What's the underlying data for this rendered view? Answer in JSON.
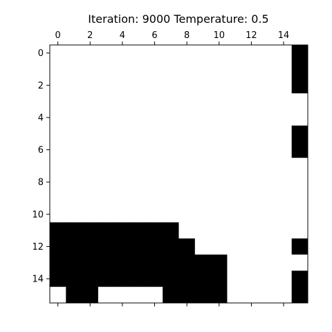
{
  "chart_data": {
    "type": "heatmap",
    "title": "Iteration: 9000 Temperature: 0.5",
    "xlabel": "",
    "ylabel": "",
    "x_ticks": [
      0,
      2,
      4,
      6,
      8,
      10,
      12,
      14
    ],
    "y_ticks": [
      0,
      2,
      4,
      6,
      8,
      10,
      12,
      14
    ],
    "xlim": [
      -0.5,
      15.5
    ],
    "ylim": [
      15.5,
      -0.5
    ],
    "x_axis_position": "top",
    "grid": false,
    "colormap": {
      "0": "#ffffff",
      "1": "#000000"
    },
    "values": [
      [
        0,
        0,
        0,
        0,
        0,
        0,
        0,
        0,
        0,
        0,
        0,
        0,
        0,
        0,
        0,
        1
      ],
      [
        0,
        0,
        0,
        0,
        0,
        0,
        0,
        0,
        0,
        0,
        0,
        0,
        0,
        0,
        0,
        1
      ],
      [
        0,
        0,
        0,
        0,
        0,
        0,
        0,
        0,
        0,
        0,
        0,
        0,
        0,
        0,
        0,
        1
      ],
      [
        0,
        0,
        0,
        0,
        0,
        0,
        0,
        0,
        0,
        0,
        0,
        0,
        0,
        0,
        0,
        0
      ],
      [
        0,
        0,
        0,
        0,
        0,
        0,
        0,
        0,
        0,
        0,
        0,
        0,
        0,
        0,
        0,
        0
      ],
      [
        0,
        0,
        0,
        0,
        0,
        0,
        0,
        0,
        0,
        0,
        0,
        0,
        0,
        0,
        0,
        1
      ],
      [
        0,
        0,
        0,
        0,
        0,
        0,
        0,
        0,
        0,
        0,
        0,
        0,
        0,
        0,
        0,
        1
      ],
      [
        0,
        0,
        0,
        0,
        0,
        0,
        0,
        0,
        0,
        0,
        0,
        0,
        0,
        0,
        0,
        0
      ],
      [
        0,
        0,
        0,
        0,
        0,
        0,
        0,
        0,
        0,
        0,
        0,
        0,
        0,
        0,
        0,
        0
      ],
      [
        0,
        0,
        0,
        0,
        0,
        0,
        0,
        0,
        0,
        0,
        0,
        0,
        0,
        0,
        0,
        0
      ],
      [
        0,
        0,
        0,
        0,
        0,
        0,
        0,
        0,
        0,
        0,
        0,
        0,
        0,
        0,
        0,
        0
      ],
      [
        1,
        1,
        1,
        1,
        1,
        1,
        1,
        1,
        0,
        0,
        0,
        0,
        0,
        0,
        0,
        0
      ],
      [
        1,
        1,
        1,
        1,
        1,
        1,
        1,
        1,
        1,
        0,
        0,
        0,
        0,
        0,
        0,
        1
      ],
      [
        1,
        1,
        1,
        1,
        1,
        1,
        1,
        1,
        1,
        1,
        1,
        0,
        0,
        0,
        0,
        0
      ],
      [
        1,
        1,
        1,
        1,
        1,
        1,
        1,
        1,
        1,
        1,
        1,
        0,
        0,
        0,
        0,
        1
      ],
      [
        0,
        1,
        1,
        0,
        0,
        0,
        0,
        1,
        1,
        1,
        1,
        0,
        0,
        0,
        0,
        1
      ]
    ]
  }
}
